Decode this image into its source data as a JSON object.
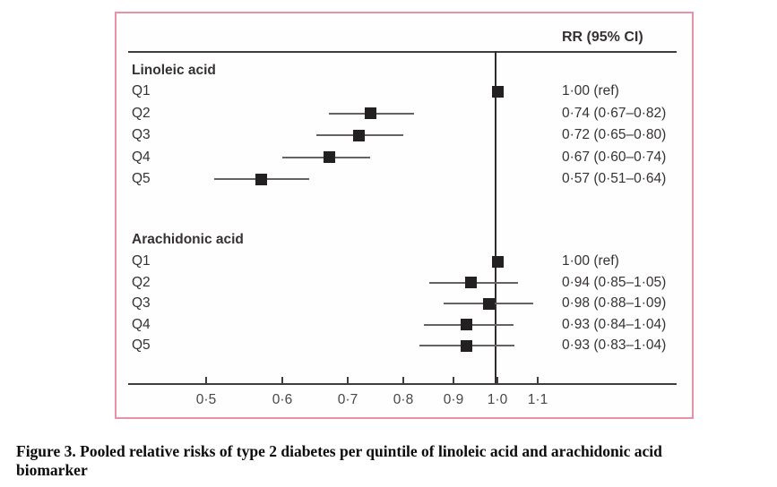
{
  "figure": {
    "header": "RR (95% CI)",
    "border_color": "#ea91a6",
    "marker_color": "#232021",
    "line_color": "#666263",
    "axis_color": "#403c3d"
  },
  "caption": {
    "lines": [
      "Figure 3. Pooled relative risks of type 2 diabetes per quintile of linoleic acid and arachidonic acid",
      "biomarker"
    ]
  },
  "chart_data": {
    "type": "forest",
    "title": "Pooled relative risks of type 2 diabetes per quintile of linoleic acid and arachidonic acid biomarker",
    "x_axis": {
      "scale": "log",
      "ticks": [
        0.5,
        0.6,
        0.7,
        0.8,
        0.9,
        1.0,
        1.1
      ],
      "tick_labels": [
        "0·5",
        "0·6",
        "0·7",
        "0·8",
        "0·9",
        "1·0",
        "1·1"
      ],
      "reference_value": 1.0,
      "xlim": [
        0.45,
        1.18
      ]
    },
    "value_column_header": "RR (95% CI)",
    "groups": [
      {
        "label": "Linoleic acid",
        "rows": [
          {
            "quintile": "Q1",
            "rr": 1.0,
            "ci_low": null,
            "ci_high": null,
            "text": "1·00 (ref)"
          },
          {
            "quintile": "Q2",
            "rr": 0.74,
            "ci_low": 0.67,
            "ci_high": 0.82,
            "text": "0·74 (0·67–0·82)"
          },
          {
            "quintile": "Q3",
            "rr": 0.72,
            "ci_low": 0.65,
            "ci_high": 0.8,
            "text": "0·72 (0·65–0·80)"
          },
          {
            "quintile": "Q4",
            "rr": 0.67,
            "ci_low": 0.6,
            "ci_high": 0.74,
            "text": "0·67 (0·60–0·74)"
          },
          {
            "quintile": "Q5",
            "rr": 0.57,
            "ci_low": 0.51,
            "ci_high": 0.64,
            "text": "0·57 (0·51–0·64)"
          }
        ]
      },
      {
        "label": "Arachidonic acid",
        "rows": [
          {
            "quintile": "Q1",
            "rr": 1.0,
            "ci_low": null,
            "ci_high": null,
            "text": "1·00 (ref)"
          },
          {
            "quintile": "Q2",
            "rr": 0.94,
            "ci_low": 0.85,
            "ci_high": 1.05,
            "text": "0·94 (0·85–1·05)"
          },
          {
            "quintile": "Q3",
            "rr": 0.98,
            "ci_low": 0.88,
            "ci_high": 1.09,
            "text": "0·98 (0·88–1·09)"
          },
          {
            "quintile": "Q4",
            "rr": 0.93,
            "ci_low": 0.84,
            "ci_high": 1.04,
            "text": "0·93 (0·84–1·04)"
          },
          {
            "quintile": "Q5",
            "rr": 0.93,
            "ci_low": 0.83,
            "ci_high": 1.04,
            "text": "0·93 (0·83–1·04)"
          }
        ]
      }
    ]
  }
}
